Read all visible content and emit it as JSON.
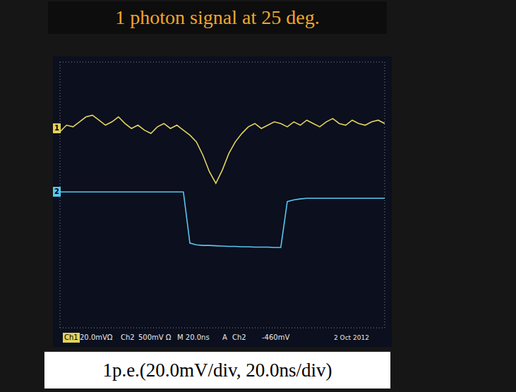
{
  "chart_data": {
    "type": "line",
    "title": "1 photon signal at 25 deg.",
    "caption": "1p.e.(20.0mV/div, 20.0ns/div)",
    "x": [
      -100,
      -96,
      -92,
      -88,
      -84,
      -80,
      -76,
      -72,
      -68,
      -64,
      -60,
      -56,
      -52,
      -48,
      -44,
      -40,
      -36,
      -32,
      -28,
      -24,
      -20,
      -16,
      -12,
      -8,
      -4,
      0,
      4,
      8,
      12,
      16,
      20,
      24,
      28,
      32,
      36,
      40,
      44,
      48,
      52,
      56,
      60,
      64,
      68,
      72,
      76,
      80,
      84,
      88,
      92,
      96,
      100
    ],
    "xlim": [
      -100,
      100
    ],
    "xticks": [
      -100,
      -80,
      -60,
      -40,
      -20,
      0,
      20,
      40,
      60,
      80,
      100
    ],
    "ylim": [
      -4,
      4
    ],
    "yticks": [
      -4,
      -3,
      -2,
      -1,
      0,
      1,
      2,
      3,
      4
    ],
    "grid": true,
    "tick_labels": false,
    "series": [
      {
        "name": "1",
        "color": "#e3d25c",
        "offset": 2.0,
        "values": [
          1.9,
          2.1,
          2.05,
          2.2,
          2.35,
          2.4,
          2.25,
          2.1,
          2.2,
          2.35,
          2.15,
          2.0,
          2.1,
          1.95,
          1.85,
          2.05,
          2.15,
          2.0,
          2.1,
          1.95,
          1.8,
          1.6,
          1.2,
          0.7,
          0.35,
          0.75,
          1.25,
          1.6,
          1.85,
          2.05,
          2.15,
          2.0,
          2.1,
          2.2,
          2.15,
          2.05,
          2.2,
          2.1,
          2.25,
          2.15,
          2.05,
          2.2,
          2.3,
          2.15,
          2.1,
          2.25,
          2.15,
          2.1,
          2.2,
          2.25,
          2.15
        ]
      },
      {
        "name": "2",
        "color": "#58c8ee",
        "offset": 0.09,
        "values": [
          0.09,
          0.09,
          0.09,
          0.09,
          0.09,
          0.09,
          0.09,
          0.09,
          0.09,
          0.09,
          0.09,
          0.09,
          0.09,
          0.09,
          0.09,
          0.09,
          0.09,
          0.09,
          0.09,
          0.09,
          -1.45,
          -1.5,
          -1.52,
          -1.52,
          -1.53,
          -1.54,
          -1.55,
          -1.55,
          -1.56,
          -1.56,
          -1.57,
          -1.57,
          -1.57,
          -1.58,
          -1.58,
          -0.2,
          -0.15,
          -0.12,
          -0.1,
          -0.1,
          -0.1,
          -0.1,
          -0.1,
          -0.1,
          -0.1,
          -0.1,
          -0.1,
          -0.1,
          -0.1,
          -0.1,
          -0.1
        ]
      }
    ],
    "status_bar": [
      "Ch1",
      "20.0mVΩ",
      "Ch2",
      "500mV Ω",
      "M 20.0ns",
      "A",
      "Ch2",
      "-460mV"
    ],
    "date": "2 Oct 2012"
  }
}
